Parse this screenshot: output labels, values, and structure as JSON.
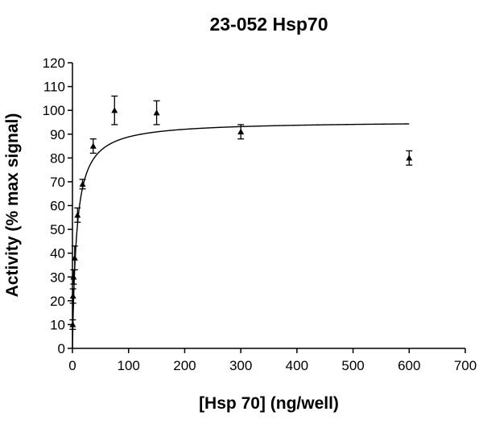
{
  "chart_data": {
    "type": "scatter",
    "title": "23-052 Hsp70",
    "xlabel": "[Hsp 70] (ng/well)",
    "ylabel": "Activity (% max signal)",
    "xlim": [
      0,
      700
    ],
    "ylim": [
      0,
      120
    ],
    "x_ticks": [
      0,
      100,
      200,
      300,
      400,
      500,
      600,
      700
    ],
    "y_ticks": [
      0,
      10,
      20,
      30,
      40,
      50,
      60,
      70,
      80,
      90,
      100,
      110,
      120
    ],
    "marker": "triangle",
    "grid": false,
    "legend": "none",
    "series": [
      {
        "points": [
          {
            "x": 0.5,
            "y": 10,
            "err": 2
          },
          {
            "x": 1,
            "y": 22,
            "err": 3
          },
          {
            "x": 2,
            "y": 30,
            "err": 3
          },
          {
            "x": 4,
            "y": 38,
            "err": 5
          },
          {
            "x": 9,
            "y": 56,
            "err": 3
          },
          {
            "x": 18,
            "y": 69,
            "err": 2
          },
          {
            "x": 37,
            "y": 85,
            "err": 3
          },
          {
            "x": 75,
            "y": 100,
            "err": 6
          },
          {
            "x": 150,
            "y": 99,
            "err": 5
          },
          {
            "x": 300,
            "y": 91,
            "err": 3
          },
          {
            "x": 600,
            "y": 80,
            "err": 3
          }
        ],
        "fit": {
          "model": "one-site hyperbola",
          "bmax": 95.5,
          "kd": 7.5,
          "x_range": [
            0,
            600
          ]
        }
      }
    ]
  }
}
